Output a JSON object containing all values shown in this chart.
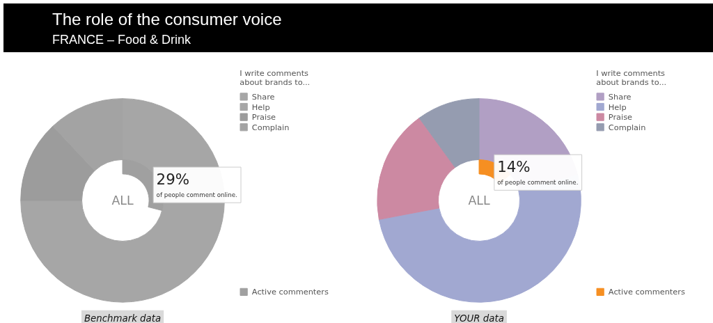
{
  "chart_data": [
    {
      "type": "donut",
      "title": "The role of the consumer voice",
      "subtitle": "FRANCE – Food & Drink",
      "legend_title": "I write comments about brands to...",
      "legend": "right",
      "categories": [
        "Share",
        "Help",
        "Praise",
        "Complain"
      ],
      "series": [
        {
          "values": [
            25,
            50,
            13,
            12
          ],
          "colors": [
            "#a6a6a6",
            "#a6a6a6",
            "#9c9c9c",
            "#a3a3a3"
          ]
        },
        {
          "name": "Active commenters",
          "color": "#a0a0a0",
          "values": [
            29,
            null,
            null,
            null
          ],
          "value_labels": [
            "29%",
            null,
            null,
            null
          ]
        }
      ],
      "annotations": [
        "ALL",
        "of people comment online.",
        "Benchmark data"
      ]
    },
    {
      "type": "donut",
      "legend_title": "I write comments about brands to...",
      "legend": "right",
      "categories": [
        "Share",
        "Help",
        "Praise",
        "Complain"
      ],
      "series": [
        {
          "values": [
            21,
            51,
            18,
            10
          ],
          "colors": [
            "#b19fc4",
            "#a1a8d1",
            "#cc89a2",
            "#959cb0"
          ]
        },
        {
          "name": "Active commenters",
          "color": "#f68f22",
          "values": [
            14,
            null,
            null,
            null
          ],
          "value_labels": [
            "14%",
            null,
            null,
            null
          ]
        }
      ],
      "annotations": [
        "ALL",
        "of people comment online.",
        "YOUR data"
      ]
    }
  ]
}
